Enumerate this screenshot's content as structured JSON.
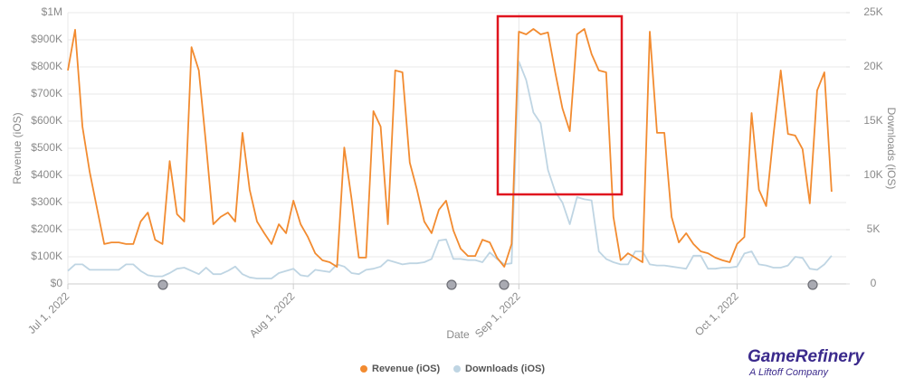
{
  "chart_data": {
    "type": "line",
    "x_label": "Date",
    "y_label": "Revenue (iOS)",
    "y2_label": "Downloads (iOS)",
    "x": [
      "2022-07-01",
      "2022-07-02",
      "2022-07-03",
      "2022-07-04",
      "2022-07-05",
      "2022-07-06",
      "2022-07-07",
      "2022-07-08",
      "2022-07-09",
      "2022-07-10",
      "2022-07-11",
      "2022-07-12",
      "2022-07-13",
      "2022-07-14",
      "2022-07-15",
      "2022-07-16",
      "2022-07-17",
      "2022-07-18",
      "2022-07-19",
      "2022-07-20",
      "2022-07-21",
      "2022-07-22",
      "2022-07-23",
      "2022-07-24",
      "2022-07-25",
      "2022-07-26",
      "2022-07-27",
      "2022-07-28",
      "2022-07-29",
      "2022-07-30",
      "2022-07-31",
      "2022-08-01",
      "2022-08-02",
      "2022-08-03",
      "2022-08-04",
      "2022-08-05",
      "2022-08-06",
      "2022-08-07",
      "2022-08-08",
      "2022-08-09",
      "2022-08-10",
      "2022-08-11",
      "2022-08-12",
      "2022-08-13",
      "2022-08-14",
      "2022-08-15",
      "2022-08-16",
      "2022-08-17",
      "2022-08-18",
      "2022-08-19",
      "2022-08-20",
      "2022-08-21",
      "2022-08-22",
      "2022-08-23",
      "2022-08-24",
      "2022-08-25",
      "2022-08-26",
      "2022-08-27",
      "2022-08-28",
      "2022-08-29",
      "2022-08-30",
      "2022-08-31",
      "2022-09-01",
      "2022-09-02",
      "2022-09-03",
      "2022-09-04",
      "2022-09-05",
      "2022-09-06",
      "2022-09-07",
      "2022-09-08",
      "2022-09-09",
      "2022-09-10",
      "2022-09-11",
      "2022-09-12",
      "2022-09-13",
      "2022-09-14",
      "2022-09-15",
      "2022-09-16",
      "2022-09-17",
      "2022-09-18",
      "2022-09-19",
      "2022-09-20",
      "2022-09-21",
      "2022-09-22",
      "2022-09-23",
      "2022-09-24",
      "2022-09-25",
      "2022-09-26",
      "2022-09-27",
      "2022-09-28",
      "2022-09-29",
      "2022-09-30",
      "2022-10-01",
      "2022-10-02",
      "2022-10-03",
      "2022-10-04",
      "2022-10-05",
      "2022-10-06",
      "2022-10-07",
      "2022-10-08",
      "2022-10-09",
      "2022-10-10",
      "2022-10-11",
      "2022-10-12",
      "2022-10-13",
      "2022-10-14"
    ],
    "xlim": [
      "2022-07-01",
      "2022-10-16"
    ],
    "xticks": [
      {
        "value": "2022-07-01",
        "label": "Jul 1, 2022"
      },
      {
        "value": "2022-08-01",
        "label": "Aug 1, 2022"
      },
      {
        "value": "2022-09-01",
        "label": "Sep 1, 2022"
      },
      {
        "value": "2022-10-01",
        "label": "Oct 1, 2022"
      }
    ],
    "ylim": [
      0,
      1000000
    ],
    "yticks": [
      {
        "value": 0,
        "label": "$0"
      },
      {
        "value": 100000,
        "label": "$100K"
      },
      {
        "value": 200000,
        "label": "$200K"
      },
      {
        "value": 300000,
        "label": "$300K"
      },
      {
        "value": 400000,
        "label": "$400K"
      },
      {
        "value": 500000,
        "label": "$500K"
      },
      {
        "value": 600000,
        "label": "$600K"
      },
      {
        "value": 700000,
        "label": "$700K"
      },
      {
        "value": 800000,
        "label": "$800K"
      },
      {
        "value": 900000,
        "label": "$900K"
      },
      {
        "value": 1000000,
        "label": "$1M"
      }
    ],
    "y2lim": [
      0,
      25000
    ],
    "y2ticks": [
      0,
      {
        "value": 5000,
        "label": "5K"
      },
      {
        "value": 10000,
        "label": "10K"
      },
      {
        "value": 15000,
        "label": "15K"
      },
      {
        "value": 20000,
        "label": "20K"
      },
      {
        "value": 25000,
        "label": "25K"
      }
    ],
    "grid": true,
    "series": [
      {
        "name": "Revenue (iOS)",
        "color": "#f28b30",
        "axis": "y",
        "values": [
          787000,
          937000,
          580000,
          413000,
          280000,
          147000,
          153000,
          153000,
          147000,
          147000,
          230000,
          263000,
          163000,
          147000,
          453000,
          257000,
          230000,
          873000,
          787000,
          513000,
          220000,
          247000,
          263000,
          230000,
          557000,
          347000,
          230000,
          187000,
          147000,
          220000,
          187000,
          307000,
          220000,
          173000,
          113000,
          87000,
          80000,
          63000,
          503000,
          313000,
          97000,
          97000,
          637000,
          580000,
          220000,
          787000,
          780000,
          447000,
          347000,
          230000,
          187000,
          273000,
          307000,
          197000,
          130000,
          103000,
          103000,
          163000,
          153000,
          97000,
          63000,
          147000,
          930000,
          920000,
          940000,
          920000,
          927000,
          780000,
          647000,
          563000,
          920000,
          940000,
          847000,
          787000,
          780000,
          247000,
          87000,
          113000,
          97000,
          80000,
          930000,
          557000,
          557000,
          247000,
          153000,
          187000,
          147000,
          120000,
          113000,
          97000,
          87000,
          80000,
          147000,
          173000,
          630000,
          347000,
          287000,
          547000,
          787000,
          553000,
          547000,
          497000,
          297000,
          713000,
          780000,
          340000
        ]
      },
      {
        "name": "Downloads (iOS)",
        "color": "#bfd5e3",
        "axis": "y2",
        "values": [
          1200,
          1800,
          1800,
          1300,
          1300,
          1300,
          1300,
          1300,
          1800,
          1800,
          1200,
          800,
          700,
          700,
          1000,
          1400,
          1500,
          1200,
          900,
          1500,
          900,
          900,
          1200,
          1600,
          900,
          600,
          500,
          500,
          500,
          1000,
          1200,
          1400,
          800,
          700,
          1300,
          1200,
          1100,
          1800,
          1600,
          1000,
          900,
          1300,
          1400,
          1600,
          2200,
          2000,
          1800,
          1900,
          1900,
          2000,
          2300,
          4000,
          4100,
          2300,
          2300,
          2200,
          2200,
          2000,
          2900,
          2300,
          1800,
          1900,
          20500,
          18800,
          15800,
          14800,
          10500,
          8500,
          7500,
          5500,
          8000,
          7800,
          7700,
          3000,
          2300,
          2000,
          1800,
          1800,
          3000,
          3000,
          1800,
          1700,
          1700,
          1600,
          1500,
          1400,
          2600,
          2600,
          1400,
          1400,
          1500,
          1500,
          1600,
          2800,
          3000,
          1800,
          1700,
          1500,
          1500,
          1700,
          2500,
          2400,
          1400,
          1300,
          1800,
          2600
        ]
      }
    ]
  },
  "logo": {
    "name": "GameRefinery",
    "tagline": "A Liftoff Company"
  }
}
